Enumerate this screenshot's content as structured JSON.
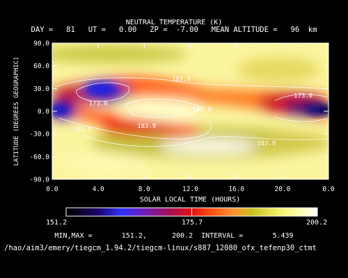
{
  "chart_data": {
    "type": "heatmap",
    "title": "NEUTRAL TEMPERATURE (K)",
    "subtitle": "DAY =   81   UT =   0.00   ZP =  -7.00   MEAN ALTITUDE =   96  km",
    "xlabel": "SOLAR LOCAL TIME (HOURS)",
    "ylabel": "LATITUDE (DEGREES GEOGRAPHIC)",
    "xlim": [
      0,
      24
    ],
    "ylim": [
      -90,
      90
    ],
    "xticks": [
      "0.0",
      "4.0",
      "8.0",
      "12.0",
      "16.0",
      "20.0",
      "0.0"
    ],
    "yticks": [
      "90.0",
      "60.0",
      "30.0",
      "0.0",
      "-30.0",
      "-60.0",
      "-90.0"
    ],
    "contour_labels": [
      {
        "text": "183.9",
        "x": 11.2,
        "y": 40
      },
      {
        "text": "173.0",
        "x": 4.0,
        "y": 8
      },
      {
        "text": "183.9",
        "x": 2.6,
        "y": -26
      },
      {
        "text": "183.9",
        "x": 8.2,
        "y": -22
      },
      {
        "text": "183.9",
        "x": 13.0,
        "y": 0
      },
      {
        "text": "173.0",
        "x": 21.8,
        "y": 18
      },
      {
        "text": "183.9",
        "x": 18.6,
        "y": -45
      }
    ],
    "colorbar": {
      "min_label": "151.2",
      "mid_label": "175.7",
      "max_label": "200.2"
    },
    "min": 151.2,
    "max": 200.2,
    "interval": 5.439
  },
  "footer": {
    "minmax": "MIN,MAX =       151.2,      200.2  INTERVAL =       5.439",
    "path": "/hao/aim3/emery/tiegcm_1.94.2/tiegcm-linux/s887_12080_ofx_tefenp30_ctmt"
  }
}
